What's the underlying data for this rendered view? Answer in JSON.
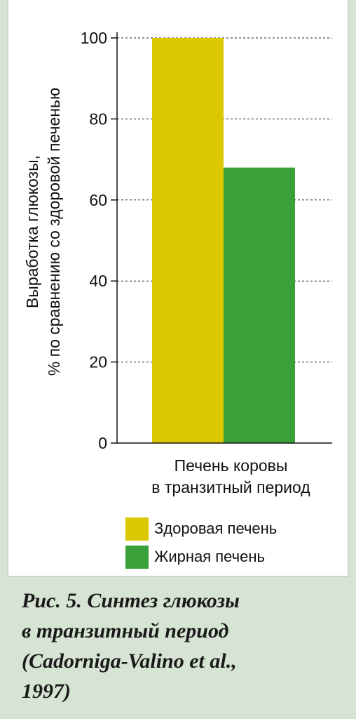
{
  "chart_data": {
    "type": "bar",
    "categories": [
      "Печень коровы в транзитный период"
    ],
    "series": [
      {
        "name": "Здоровая печень",
        "values": [
          100
        ],
        "color": "#dcc800"
      },
      {
        "name": "Жирная печень",
        "values": [
          68
        ],
        "color": "#3aa03a"
      }
    ],
    "xlabel": [
      "Печень коровы",
      "в транзитный период"
    ],
    "ylabel": [
      "Выработка глюкозы,",
      "% по сравнению со здоровой печенью"
    ],
    "ylim": [
      0,
      100
    ],
    "yticks": [
      "0",
      "20",
      "40",
      "60",
      "80",
      "100"
    ],
    "grid": "dashed horizontal",
    "legend_position": "bottom"
  },
  "caption": [
    "Рис. 5. Синтез глюкозы",
    "в транзитный период",
    "(Cadorniga-Valino et al.,",
    "1997)"
  ]
}
